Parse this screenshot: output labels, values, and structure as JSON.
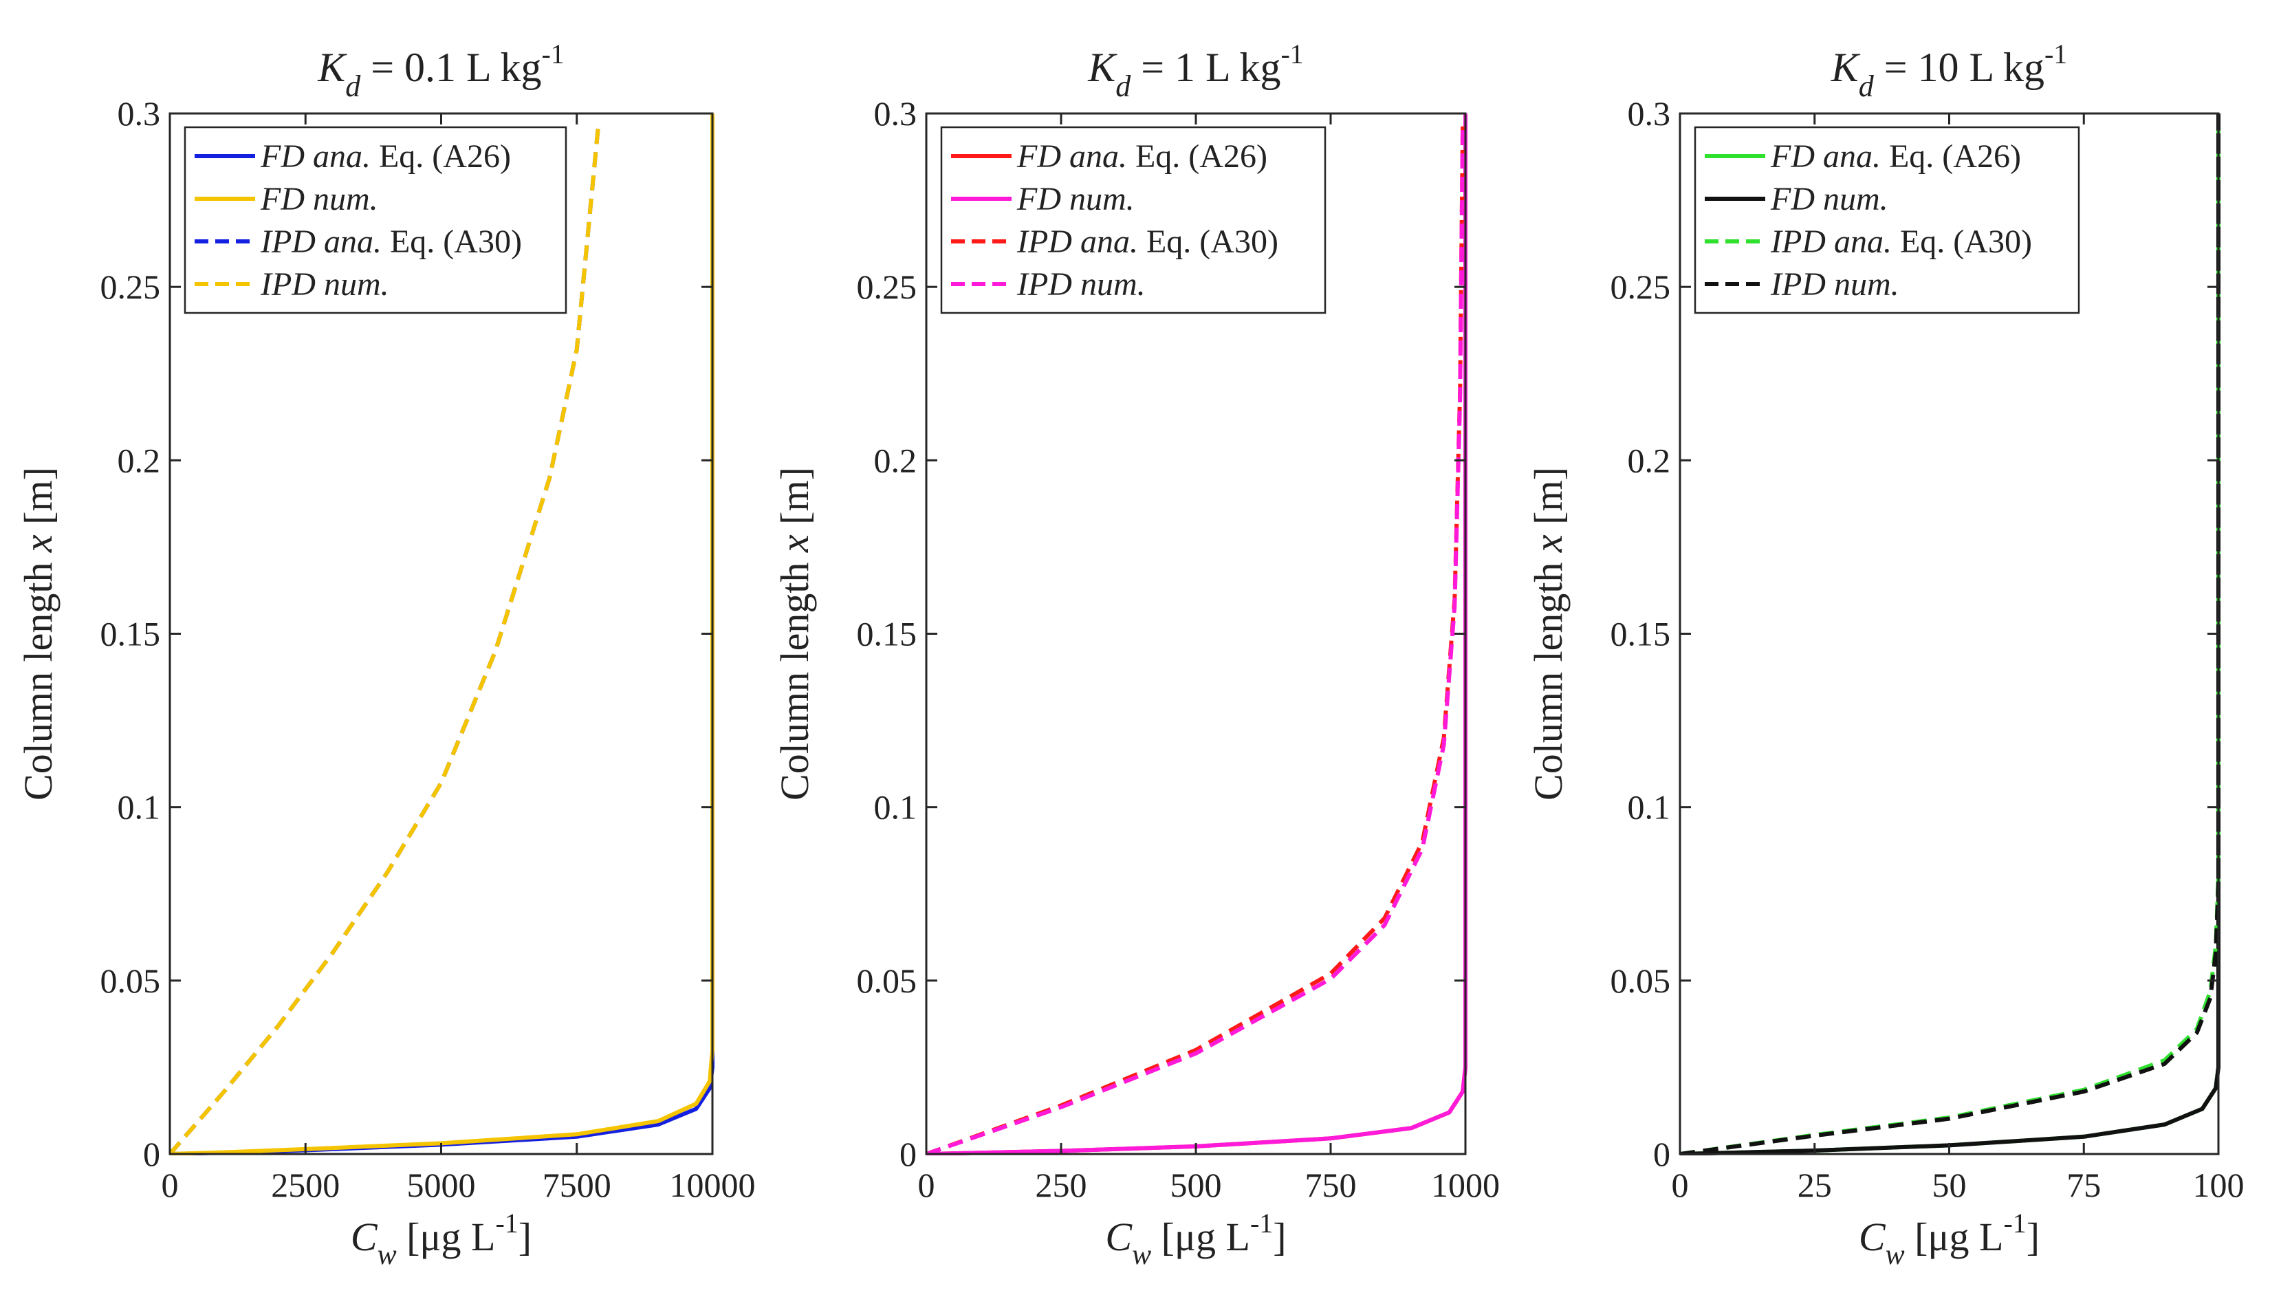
{
  "chart_data": [
    {
      "type": "line",
      "title": {
        "symbol": "K",
        "sub": "d",
        "rest": " = 0.1 L kg",
        "sup": "-1"
      },
      "xlabel": {
        "symbol": "C",
        "sub": "w",
        "rest": " [μg L",
        "sup": "-1",
        "close": "]"
      },
      "ylabel": {
        "text": "Column length ",
        "symbol": "x",
        "unit": " [m]"
      },
      "xlim": [
        0,
        10000
      ],
      "ylim": [
        0,
        0.3
      ],
      "xticks": [
        0,
        2500,
        5000,
        7500,
        10000
      ],
      "yticks": [
        0,
        0.05,
        0.1,
        0.15,
        0.2,
        0.25,
        0.3
      ],
      "xtick_labels": [
        "0",
        "2500",
        "5000",
        "7500",
        "10000"
      ],
      "ytick_labels": [
        "0",
        "0.05",
        "0.1",
        "0.15",
        "0.2",
        "0.25",
        "0.3"
      ],
      "legend_position": "top-left",
      "series": [
        {
          "name_italic": "FD ana.",
          "name_rest": " Eq. (A26)",
          "color": "#1420e0",
          "dash": "solid",
          "points": [
            [
              0,
              0
            ],
            [
              1000,
              0.0004
            ],
            [
              2500,
              0.0011
            ],
            [
              5000,
              0.0027
            ],
            [
              7500,
              0.005
            ],
            [
              9000,
              0.0085
            ],
            [
              9700,
              0.013
            ],
            [
              9950,
              0.019
            ],
            [
              10000,
              0.025
            ],
            [
              10000,
              0.3
            ]
          ]
        },
        {
          "name_italic": "FD num.",
          "name_rest": "",
          "color": "#f5c400",
          "dash": "solid",
          "points": [
            [
              0,
              0
            ],
            [
              1000,
              0.0005
            ],
            [
              2500,
              0.0014
            ],
            [
              5000,
              0.0031
            ],
            [
              7500,
              0.0057
            ],
            [
              9000,
              0.0095
            ],
            [
              9700,
              0.0145
            ],
            [
              9950,
              0.021
            ],
            [
              10000,
              0.03
            ],
            [
              10000,
              0.3
            ]
          ]
        },
        {
          "name_italic": "IPD ana.",
          "name_rest": " Eq. (A30)",
          "color": "#1420e0",
          "dash": "dashed",
          "points": [
            [
              0,
              0
            ],
            [
              1000,
              0.018
            ],
            [
              2000,
              0.037
            ],
            [
              3000,
              0.058
            ],
            [
              4000,
              0.081
            ],
            [
              5000,
              0.107
            ],
            [
              6000,
              0.145
            ],
            [
              7000,
              0.195
            ],
            [
              7500,
              0.232
            ],
            [
              7900,
              0.297
            ]
          ]
        },
        {
          "name_italic": "IPD num.",
          "name_rest": "",
          "color": "#f5c400",
          "dash": "dashed",
          "points": [
            [
              0,
              0
            ],
            [
              1000,
              0.018
            ],
            [
              2000,
              0.037
            ],
            [
              3000,
              0.058
            ],
            [
              4000,
              0.081
            ],
            [
              5000,
              0.107
            ],
            [
              6000,
              0.145
            ],
            [
              7000,
              0.195
            ],
            [
              7500,
              0.232
            ],
            [
              7900,
              0.297
            ]
          ]
        }
      ]
    },
    {
      "type": "line",
      "title": {
        "symbol": "K",
        "sub": "d",
        "rest": " = 1 L kg",
        "sup": "-1"
      },
      "xlabel": {
        "symbol": "C",
        "sub": "w",
        "rest": " [μg L",
        "sup": "-1",
        "close": "]"
      },
      "ylabel": {
        "text": "Column length ",
        "symbol": "x",
        "unit": " [m]"
      },
      "xlim": [
        0,
        1000
      ],
      "ylim": [
        0,
        0.3
      ],
      "xticks": [
        0,
        250,
        500,
        750,
        1000
      ],
      "yticks": [
        0,
        0.05,
        0.1,
        0.15,
        0.2,
        0.25,
        0.3
      ],
      "xtick_labels": [
        "0",
        "250",
        "500",
        "750",
        "1000"
      ],
      "ytick_labels": [
        "0",
        "0.05",
        "0.1",
        "0.15",
        "0.2",
        "0.25",
        "0.3"
      ],
      "legend_position": "top-left",
      "series": [
        {
          "name_italic": "FD ana.",
          "name_rest": " Eq. (A26)",
          "color": "#ff1a1a",
          "dash": "solid",
          "points": [
            [
              0,
              0
            ],
            [
              250,
              0.0009
            ],
            [
              500,
              0.0022
            ],
            [
              750,
              0.0045
            ],
            [
              900,
              0.0075
            ],
            [
              970,
              0.012
            ],
            [
              995,
              0.018
            ],
            [
              1000,
              0.025
            ],
            [
              1000,
              0.3
            ]
          ]
        },
        {
          "name_italic": "FD num.",
          "name_rest": "",
          "color": "#ff1ad9",
          "dash": "solid",
          "points": [
            [
              0,
              0
            ],
            [
              250,
              0.0009
            ],
            [
              500,
              0.0022
            ],
            [
              750,
              0.0045
            ],
            [
              900,
              0.0075
            ],
            [
              970,
              0.012
            ],
            [
              995,
              0.018
            ],
            [
              1000,
              0.025
            ],
            [
              1000,
              0.3
            ]
          ]
        },
        {
          "name_italic": "IPD ana.",
          "name_rest": " Eq. (A30)",
          "color": "#ff1a1a",
          "dash": "dashed",
          "points": [
            [
              0,
              0
            ],
            [
              250,
              0.014
            ],
            [
              500,
              0.03
            ],
            [
              750,
              0.052
            ],
            [
              850,
              0.068
            ],
            [
              920,
              0.09
            ],
            [
              960,
              0.12
            ],
            [
              980,
              0.16
            ],
            [
              990,
              0.22
            ],
            [
              995,
              0.297
            ]
          ]
        },
        {
          "name_italic": "IPD num.",
          "name_rest": "",
          "color": "#ff1ad9",
          "dash": "dashed",
          "points": [
            [
              0,
              0
            ],
            [
              250,
              0.0135
            ],
            [
              500,
              0.029
            ],
            [
              750,
              0.0505
            ],
            [
              850,
              0.066
            ],
            [
              920,
              0.088
            ],
            [
              960,
              0.118
            ],
            [
              980,
              0.158
            ],
            [
              990,
              0.218
            ],
            [
              995,
              0.297
            ]
          ]
        }
      ]
    },
    {
      "type": "line",
      "title": {
        "symbol": "K",
        "sub": "d",
        "rest": " = 10 L kg",
        "sup": "-1"
      },
      "xlabel": {
        "symbol": "C",
        "sub": "w",
        "rest": " [μg L",
        "sup": "-1",
        "close": "]"
      },
      "ylabel": {
        "text": "Column length ",
        "symbol": "x",
        "unit": " [m]"
      },
      "xlim": [
        0,
        100
      ],
      "ylim": [
        0,
        0.3
      ],
      "xticks": [
        0,
        25,
        50,
        75,
        100
      ],
      "yticks": [
        0,
        0.05,
        0.1,
        0.15,
        0.2,
        0.25,
        0.3
      ],
      "xtick_labels": [
        "0",
        "25",
        "50",
        "75",
        "100"
      ],
      "ytick_labels": [
        "0",
        "0.05",
        "0.1",
        "0.15",
        "0.2",
        "0.25",
        "0.3"
      ],
      "legend_position": "top-left",
      "series": [
        {
          "name_italic": "FD ana.",
          "name_rest": " Eq. (A26)",
          "color": "#2fe02f",
          "dash": "solid",
          "points": [
            [
              0,
              0
            ],
            [
              25,
              0.001
            ],
            [
              50,
              0.0025
            ],
            [
              75,
              0.005
            ],
            [
              90,
              0.0085
            ],
            [
              97,
              0.013
            ],
            [
              99.5,
              0.019
            ],
            [
              100,
              0.025
            ],
            [
              100,
              0.3
            ]
          ]
        },
        {
          "name_italic": "FD num.",
          "name_rest": "",
          "color": "#111111",
          "dash": "solid",
          "points": [
            [
              0,
              0
            ],
            [
              25,
              0.001
            ],
            [
              50,
              0.0025
            ],
            [
              75,
              0.005
            ],
            [
              90,
              0.0085
            ],
            [
              97,
              0.013
            ],
            [
              99.5,
              0.019
            ],
            [
              100,
              0.025
            ],
            [
              100,
              0.3
            ]
          ]
        },
        {
          "name_italic": "IPD ana.",
          "name_rest": " Eq. (A30)",
          "color": "#2fe02f",
          "dash": "dashed",
          "points": [
            [
              0,
              0
            ],
            [
              25,
              0.0055
            ],
            [
              50,
              0.0105
            ],
            [
              75,
              0.0185
            ],
            [
              90,
              0.027
            ],
            [
              96,
              0.036
            ],
            [
              98.5,
              0.047
            ],
            [
              99.5,
              0.06
            ],
            [
              100,
              0.08
            ],
            [
              100,
              0.3
            ]
          ]
        },
        {
          "name_italic": "IPD num.",
          "name_rest": "",
          "color": "#111111",
          "dash": "dashed",
          "points": [
            [
              0,
              0
            ],
            [
              25,
              0.0053
            ],
            [
              50,
              0.0102
            ],
            [
              75,
              0.018
            ],
            [
              90,
              0.026
            ],
            [
              96,
              0.035
            ],
            [
              98.5,
              0.045
            ],
            [
              99.5,
              0.058
            ],
            [
              100,
              0.078
            ],
            [
              100,
              0.3
            ]
          ]
        }
      ]
    }
  ]
}
